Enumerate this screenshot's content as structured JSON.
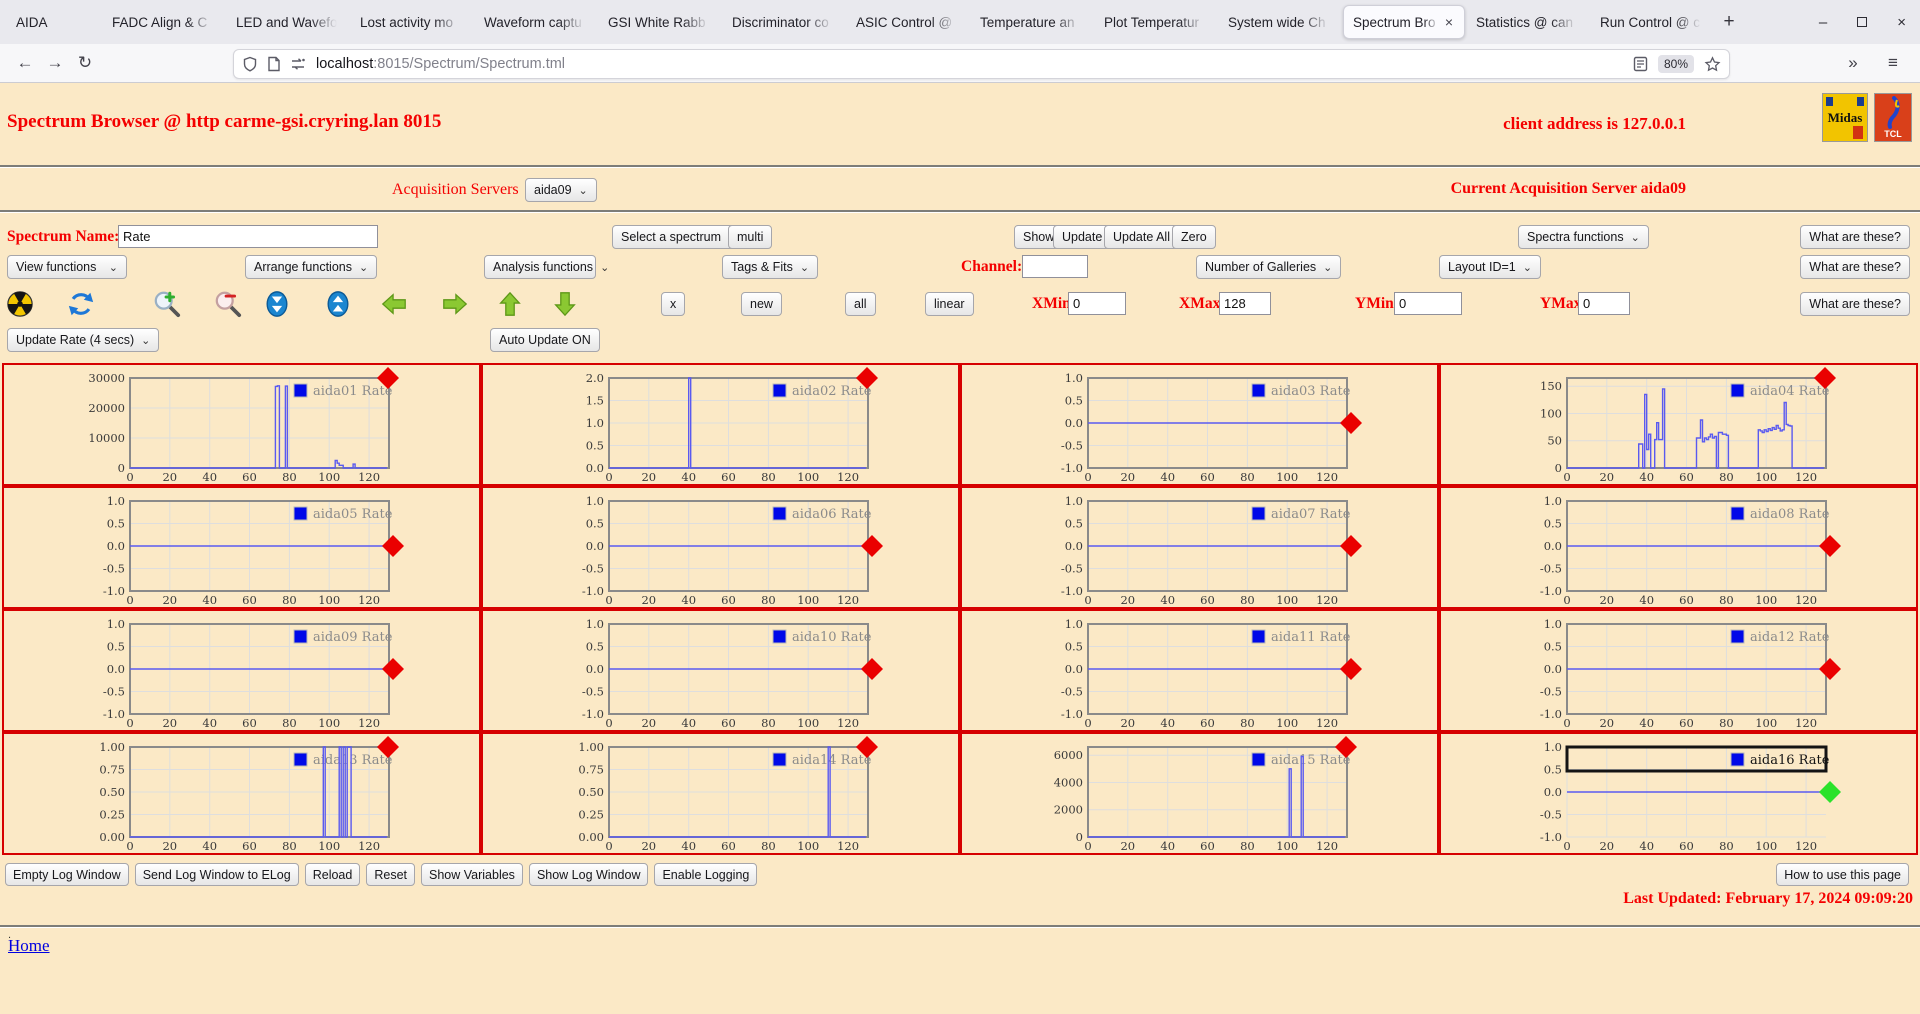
{
  "browser": {
    "tabs": [
      "AIDA",
      "FADC Align & C",
      "LED and Wavefo",
      "Lost activity mo",
      "Waveform captu",
      "GSI White Rabb",
      "Discriminator co",
      "ASIC Control @",
      "Temperature an",
      "Plot Temperatur",
      "System wide Ch",
      "Spectrum Bro",
      "Statistics @ can",
      "Run Control @ c"
    ],
    "active_tab_index": 11,
    "new_tab_label": "+",
    "url_host": "localhost",
    "url_rest": ":8015/Spectrum/Spectrum.tml",
    "zoom_badge": "80%"
  },
  "icons": {
    "minimize": "–",
    "close": "×",
    "back": "←",
    "forward": "→",
    "reload": "↻",
    "overflow_chevron": "»",
    "menu": "≡",
    "dropdown_arrow": "⌄",
    "tab_close": "×"
  },
  "header": {
    "title": "Spectrum Browser @ http carme-gsi.cryring.lan 8015",
    "client_address": "client address is 127.0.0.1",
    "midas_logo_label": "Midas",
    "tcl_logo_label": "TCL"
  },
  "acquisition": {
    "label": "Acquisition Servers",
    "selected_server": "aida09",
    "current_label": "Current Acquisition Server aida09"
  },
  "controls": {
    "spectrum_name_label": "Spectrum Name:",
    "spectrum_name_value": "Rate",
    "select_spectrum": "Select a spectrum",
    "multi_button": "multi",
    "show_button": "Show",
    "update_button": "Update",
    "update_all_button": "Update All",
    "zero_button": "Zero",
    "spectra_functions": "Spectra functions",
    "what_are_these_button": "What are these?",
    "view_functions": "View functions",
    "arrange_functions": "Arrange functions",
    "analysis_functions": "Analysis functions",
    "tags_fits": "Tags & Fits",
    "channel_label": "Channel:",
    "channel_value": "",
    "number_of_galleries": "Number of Galleries",
    "layout_id": "Layout ID=1",
    "x_button": "x",
    "new_button": "new",
    "all_button": "all",
    "linear_button": "linear",
    "xmin_label": "XMin",
    "xmin_value": "0",
    "xmax_label": "XMax",
    "xmax_value": "128",
    "ymin_label": "YMin",
    "ymin_value": "0",
    "ymax_label": "YMax",
    "ymax_value": "0",
    "update_rate": "Update Rate (4 secs)",
    "auto_update_button": "Auto Update ON",
    "toolbar_icons": [
      "radiation-icon",
      "refresh-icon",
      "zoom-in-icon",
      "zoom-out-icon",
      "compress-vertical-icon",
      "expand-vertical-icon",
      "arrow-left-icon",
      "arrow-right-icon",
      "arrow-up-icon",
      "arrow-down-icon"
    ]
  },
  "chart_common": {
    "type": "line",
    "xlim": [
      0,
      130
    ],
    "xticks": [
      0,
      20,
      40,
      60,
      80,
      100,
      120
    ],
    "grid": true,
    "legend_position": "top-right"
  },
  "chart_data": [
    {
      "name": "aida01",
      "legend": "aida01 Rate",
      "ylim": [
        0,
        30000
      ],
      "yticks": [
        0,
        10000,
        20000,
        30000
      ],
      "ytick_labels": [
        "0",
        "10000",
        "20000",
        "30000"
      ],
      "marker": {
        "color": "#ea0000",
        "pos": "top"
      },
      "selected": false,
      "points": [
        [
          0,
          0
        ],
        [
          73,
          0
        ],
        [
          73,
          27200
        ],
        [
          74,
          27200
        ],
        [
          74,
          27400
        ],
        [
          75,
          27400
        ],
        [
          75,
          0
        ],
        [
          78,
          0
        ],
        [
          78,
          27300
        ],
        [
          79,
          27300
        ],
        [
          79,
          0
        ],
        [
          103,
          0
        ],
        [
          103,
          2500
        ],
        [
          104,
          2500
        ],
        [
          104,
          1600
        ],
        [
          105,
          1600
        ],
        [
          105,
          900
        ],
        [
          107,
          900
        ],
        [
          107,
          0
        ],
        [
          112,
          0
        ],
        [
          112,
          1300
        ],
        [
          113,
          1300
        ],
        [
          113,
          0
        ],
        [
          129,
          0
        ]
      ]
    },
    {
      "name": "aida02",
      "legend": "aida02 Rate",
      "ylim": [
        0,
        2
      ],
      "yticks": [
        0,
        0.5,
        1,
        1.5,
        2
      ],
      "ytick_labels": [
        "0.0",
        "0.5",
        "1.0",
        "1.5",
        "2.0"
      ],
      "marker": {
        "color": "#ea0000",
        "pos": "top"
      },
      "selected": false,
      "points": [
        [
          0,
          0
        ],
        [
          40,
          0
        ],
        [
          40,
          2
        ],
        [
          41,
          2
        ],
        [
          41,
          0
        ],
        [
          129,
          0
        ]
      ]
    },
    {
      "name": "aida03",
      "legend": "aida03 Rate",
      "ylim": [
        -1,
        1
      ],
      "yticks": [
        -1,
        -0.5,
        0,
        0.5,
        1
      ],
      "ytick_labels": [
        "-1.0",
        "-0.5",
        "0.0",
        "0.5",
        "1.0"
      ],
      "marker": {
        "color": "#ea0000",
        "pos": "mid"
      },
      "selected": false,
      "points": [
        [
          0,
          0
        ],
        [
          129,
          0
        ]
      ]
    },
    {
      "name": "aida04",
      "legend": "aida04 Rate",
      "ylim": [
        0,
        165
      ],
      "yticks": [
        0,
        50,
        100,
        150
      ],
      "ytick_labels": [
        "0",
        "50",
        "100",
        "150"
      ],
      "marker": {
        "color": "#ea0000",
        "pos": "top"
      },
      "selected": false,
      "points": [
        [
          0,
          0
        ],
        [
          36,
          0
        ],
        [
          36,
          44
        ],
        [
          38,
          44
        ],
        [
          38,
          0
        ],
        [
          39,
          0
        ],
        [
          39,
          135
        ],
        [
          40,
          135
        ],
        [
          40,
          34
        ],
        [
          41,
          34
        ],
        [
          41,
          62
        ],
        [
          42,
          62
        ],
        [
          42,
          0
        ],
        [
          44,
          0
        ],
        [
          44,
          52
        ],
        [
          45,
          52
        ],
        [
          45,
          83
        ],
        [
          46,
          83
        ],
        [
          46,
          52
        ],
        [
          48,
          52
        ],
        [
          48,
          145
        ],
        [
          49,
          145
        ],
        [
          49,
          0
        ],
        [
          65,
          0
        ],
        [
          65,
          55
        ],
        [
          67,
          55
        ],
        [
          67,
          88
        ],
        [
          68,
          88
        ],
        [
          68,
          48
        ],
        [
          69,
          48
        ],
        [
          69,
          55
        ],
        [
          70,
          55
        ],
        [
          70,
          52
        ],
        [
          71,
          52
        ],
        [
          71,
          57
        ],
        [
          72,
          57
        ],
        [
          72,
          62
        ],
        [
          73,
          62
        ],
        [
          73,
          55
        ],
        [
          74,
          55
        ],
        [
          74,
          58
        ],
        [
          75,
          58
        ],
        [
          75,
          0
        ],
        [
          76,
          0
        ],
        [
          76,
          65
        ],
        [
          78,
          65
        ],
        [
          78,
          62
        ],
        [
          80,
          62
        ],
        [
          80,
          60
        ],
        [
          81,
          60
        ],
        [
          81,
          0
        ],
        [
          96,
          0
        ],
        [
          96,
          70
        ],
        [
          97,
          70
        ],
        [
          97,
          68
        ],
        [
          98,
          68
        ],
        [
          98,
          65
        ],
        [
          99,
          65
        ],
        [
          99,
          70
        ],
        [
          100,
          70
        ],
        [
          100,
          67
        ],
        [
          101,
          67
        ],
        [
          101,
          72
        ],
        [
          102,
          72
        ],
        [
          102,
          69
        ],
        [
          103,
          69
        ],
        [
          103,
          74
        ],
        [
          104,
          74
        ],
        [
          104,
          71
        ],
        [
          105,
          71
        ],
        [
          105,
          78
        ],
        [
          106,
          78
        ],
        [
          106,
          73
        ],
        [
          107,
          73
        ],
        [
          107,
          68
        ],
        [
          108,
          68
        ],
        [
          108,
          70
        ],
        [
          109,
          70
        ],
        [
          109,
          120
        ],
        [
          110,
          120
        ],
        [
          110,
          80
        ],
        [
          111,
          80
        ],
        [
          111,
          78
        ],
        [
          112,
          78
        ],
        [
          112,
          77
        ],
        [
          113,
          77
        ],
        [
          113,
          0
        ],
        [
          129,
          0
        ]
      ]
    },
    {
      "name": "aida05",
      "legend": "aida05 Rate",
      "ylim": [
        -1,
        1
      ],
      "yticks": [
        -1,
        -0.5,
        0,
        0.5,
        1
      ],
      "ytick_labels": [
        "-1.0",
        "-0.5",
        "0.0",
        "0.5",
        "1.0"
      ],
      "marker": {
        "color": "#ea0000",
        "pos": "mid"
      },
      "selected": false,
      "points": [
        [
          0,
          0
        ],
        [
          129,
          0
        ]
      ]
    },
    {
      "name": "aida06",
      "legend": "aida06 Rate",
      "ylim": [
        -1,
        1
      ],
      "yticks": [
        -1,
        -0.5,
        0,
        0.5,
        1
      ],
      "ytick_labels": [
        "-1.0",
        "-0.5",
        "0.0",
        "0.5",
        "1.0"
      ],
      "marker": {
        "color": "#ea0000",
        "pos": "mid"
      },
      "selected": false,
      "points": [
        [
          0,
          0
        ],
        [
          129,
          0
        ]
      ]
    },
    {
      "name": "aida07",
      "legend": "aida07 Rate",
      "ylim": [
        -1,
        1
      ],
      "yticks": [
        -1,
        -0.5,
        0,
        0.5,
        1
      ],
      "ytick_labels": [
        "-1.0",
        "-0.5",
        "0.0",
        "0.5",
        "1.0"
      ],
      "marker": {
        "color": "#ea0000",
        "pos": "mid"
      },
      "selected": false,
      "points": [
        [
          0,
          0
        ],
        [
          129,
          0
        ]
      ]
    },
    {
      "name": "aida08",
      "legend": "aida08 Rate",
      "ylim": [
        -1,
        1
      ],
      "yticks": [
        -1,
        -0.5,
        0,
        0.5,
        1
      ],
      "ytick_labels": [
        "-1.0",
        "-0.5",
        "0.0",
        "0.5",
        "1.0"
      ],
      "marker": {
        "color": "#ea0000",
        "pos": "mid"
      },
      "selected": false,
      "points": [
        [
          0,
          0
        ],
        [
          129,
          0
        ]
      ]
    },
    {
      "name": "aida09",
      "legend": "aida09 Rate",
      "ylim": [
        -1,
        1
      ],
      "yticks": [
        -1,
        -0.5,
        0,
        0.5,
        1
      ],
      "ytick_labels": [
        "-1.0",
        "-0.5",
        "0.0",
        "0.5",
        "1.0"
      ],
      "marker": {
        "color": "#ea0000",
        "pos": "mid"
      },
      "selected": false,
      "points": [
        [
          0,
          0
        ],
        [
          129,
          0
        ]
      ]
    },
    {
      "name": "aida10",
      "legend": "aida10 Rate",
      "ylim": [
        -1,
        1
      ],
      "yticks": [
        -1,
        -0.5,
        0,
        0.5,
        1
      ],
      "ytick_labels": [
        "-1.0",
        "-0.5",
        "0.0",
        "0.5",
        "1.0"
      ],
      "marker": {
        "color": "#ea0000",
        "pos": "mid"
      },
      "selected": false,
      "points": [
        [
          0,
          0
        ],
        [
          129,
          0
        ]
      ]
    },
    {
      "name": "aida11",
      "legend": "aida11 Rate",
      "ylim": [
        -1,
        1
      ],
      "yticks": [
        -1,
        -0.5,
        0,
        0.5,
        1
      ],
      "ytick_labels": [
        "-1.0",
        "-0.5",
        "0.0",
        "0.5",
        "1.0"
      ],
      "marker": {
        "color": "#ea0000",
        "pos": "mid"
      },
      "selected": false,
      "points": [
        [
          0,
          0
        ],
        [
          129,
          0
        ]
      ]
    },
    {
      "name": "aida12",
      "legend": "aida12 Rate",
      "ylim": [
        -1,
        1
      ],
      "yticks": [
        -1,
        -0.5,
        0,
        0.5,
        1
      ],
      "ytick_labels": [
        "-1.0",
        "-0.5",
        "0.0",
        "0.5",
        "1.0"
      ],
      "marker": {
        "color": "#ea0000",
        "pos": "mid"
      },
      "selected": false,
      "points": [
        [
          0,
          0
        ],
        [
          129,
          0
        ]
      ]
    },
    {
      "name": "aida13",
      "legend": "aida13 Rate",
      "ylim": [
        0,
        1
      ],
      "yticks": [
        0,
        0.25,
        0.5,
        0.75,
        1
      ],
      "ytick_labels": [
        "0.00",
        "0.25",
        "0.50",
        "0.75",
        "1.00"
      ],
      "marker": {
        "color": "#ea0000",
        "pos": "top"
      },
      "selected": false,
      "points": [
        [
          0,
          0
        ],
        [
          97,
          0
        ],
        [
          97,
          1
        ],
        [
          98,
          1
        ],
        [
          98,
          0
        ],
        [
          105,
          0
        ],
        [
          105,
          1
        ],
        [
          106,
          1
        ],
        [
          106,
          0
        ],
        [
          107,
          0
        ],
        [
          107,
          1
        ],
        [
          108,
          1
        ],
        [
          108,
          0
        ],
        [
          109,
          0
        ],
        [
          109,
          1
        ],
        [
          111,
          1
        ],
        [
          111,
          0
        ],
        [
          129,
          0
        ]
      ]
    },
    {
      "name": "aida14",
      "legend": "aida14 Rate",
      "ylim": [
        0,
        1
      ],
      "yticks": [
        0,
        0.25,
        0.5,
        0.75,
        1
      ],
      "ytick_labels": [
        "0.00",
        "0.25",
        "0.50",
        "0.75",
        "1.00"
      ],
      "marker": {
        "color": "#ea0000",
        "pos": "top"
      },
      "selected": false,
      "points": [
        [
          0,
          0
        ],
        [
          110,
          0
        ],
        [
          110,
          1
        ],
        [
          111,
          1
        ],
        [
          111,
          0
        ],
        [
          129,
          0
        ]
      ]
    },
    {
      "name": "aida15",
      "legend": "aida15 Rate",
      "ylim": [
        0,
        6600
      ],
      "yticks": [
        0,
        2000,
        4000,
        6000
      ],
      "ytick_labels": [
        "0",
        "2000",
        "4000",
        "6000"
      ],
      "marker": {
        "color": "#ea0000",
        "pos": "top"
      },
      "selected": false,
      "points": [
        [
          0,
          0
        ],
        [
          101,
          0
        ],
        [
          101,
          5000
        ],
        [
          102,
          5000
        ],
        [
          102,
          0
        ],
        [
          107,
          0
        ],
        [
          107,
          5900
        ],
        [
          108,
          5900
        ],
        [
          108,
          0
        ],
        [
          129,
          0
        ]
      ]
    },
    {
      "name": "aida16",
      "legend": "aida16 Rate",
      "ylim": [
        -1,
        1
      ],
      "yticks": [
        -1,
        -0.5,
        0,
        0.5,
        1
      ],
      "ytick_labels": [
        "-1.0",
        "-0.5",
        "0.0",
        "0.5",
        "1.0"
      ],
      "marker": {
        "color": "#2be22b",
        "pos": "mid"
      },
      "selected": true,
      "points": [
        [
          0,
          0
        ],
        [
          129,
          0
        ]
      ]
    }
  ],
  "footer": {
    "buttons": [
      "Empty Log Window",
      "Send Log Window to ELog",
      "Reload",
      "Reset",
      "Show Variables",
      "Show Log Window",
      "Enable Logging"
    ],
    "help_button": "How to use this page",
    "last_updated": "Last Updated: February 17, 2024 09:09:20",
    "dot": ".",
    "home_link": "Home"
  }
}
